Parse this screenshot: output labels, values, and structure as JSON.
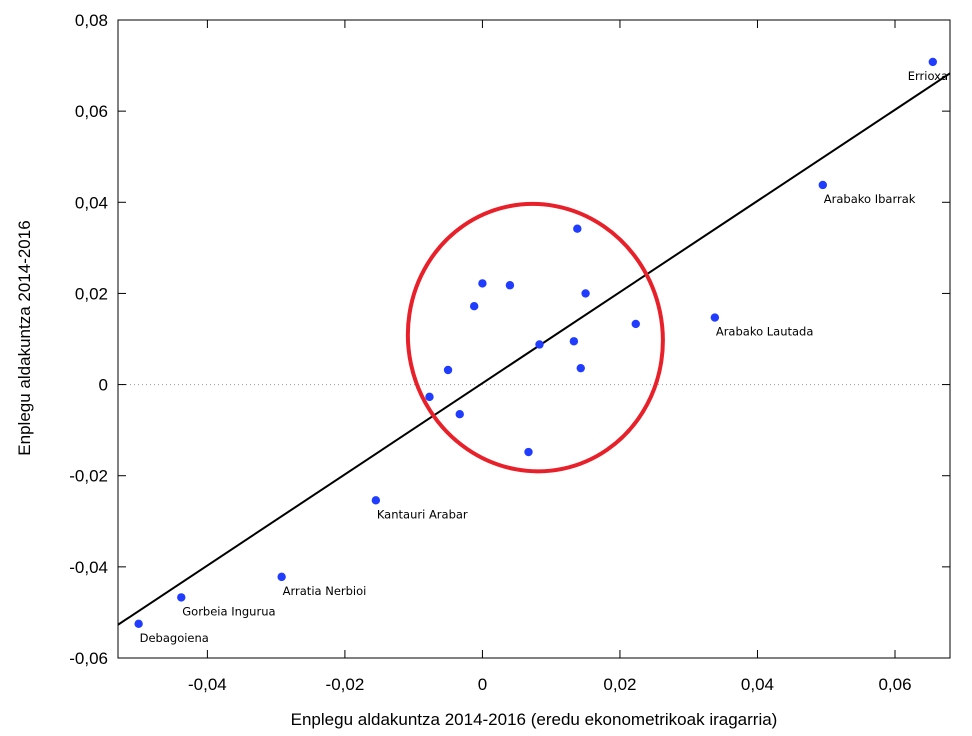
{
  "chart_data": {
    "type": "scatter",
    "xlabel": "Enplegu aldakuntza 2014-2016 (eredu ekonometrikoak iragarria)",
    "ylabel": "Enplegu aldakuntza 2014-2016",
    "xlim": [
      -0.053,
      0.068
    ],
    "ylim": [
      -0.06,
      0.08
    ],
    "x_ticks": [
      {
        "value": -0.04,
        "label": "-0,04"
      },
      {
        "value": -0.02,
        "label": "-0,02"
      },
      {
        "value": 0,
        "label": "0"
      },
      {
        "value": 0.02,
        "label": "0,02"
      },
      {
        "value": 0.04,
        "label": "0,04"
      },
      {
        "value": 0.06,
        "label": "0,06"
      }
    ],
    "y_ticks": [
      {
        "value": -0.06,
        "label": "-0,06"
      },
      {
        "value": -0.04,
        "label": "-0,04"
      },
      {
        "value": -0.02,
        "label": "-0,02"
      },
      {
        "value": 0,
        "label": "0"
      },
      {
        "value": 0.02,
        "label": "0,02"
      },
      {
        "value": 0.04,
        "label": "0,04"
      },
      {
        "value": 0.06,
        "label": "0,06"
      },
      {
        "value": 0.08,
        "label": "0,08"
      }
    ],
    "points": [
      {
        "x": 0.0655,
        "y": 0.0708,
        "label": "Errioxa"
      },
      {
        "x": 0.0495,
        "y": 0.0438,
        "label": "Arabako Ibarrak"
      },
      {
        "x": 0.0338,
        "y": 0.0147,
        "label": "Arabako Lautada"
      },
      {
        "x": -0.0155,
        "y": -0.0254,
        "label": "Kantauri Arabar"
      },
      {
        "x": -0.0292,
        "y": -0.0422,
        "label": "Arratia Nerbioi"
      },
      {
        "x": -0.0438,
        "y": -0.0467,
        "label": "Gorbeia Ingurua"
      },
      {
        "x": -0.05,
        "y": -0.0525,
        "label": "Debagoiena"
      },
      {
        "x": 0.0138,
        "y": 0.0342,
        "label": ""
      },
      {
        "x": 0.0,
        "y": 0.0222,
        "label": ""
      },
      {
        "x": 0.004,
        "y": 0.0218,
        "label": ""
      },
      {
        "x": 0.015,
        "y": 0.02,
        "label": ""
      },
      {
        "x": -0.0012,
        "y": 0.0172,
        "label": ""
      },
      {
        "x": 0.0223,
        "y": 0.0133,
        "label": ""
      },
      {
        "x": 0.0083,
        "y": 0.0088,
        "label": ""
      },
      {
        "x": 0.0133,
        "y": 0.0095,
        "label": ""
      },
      {
        "x": -0.005,
        "y": 0.0032,
        "label": ""
      },
      {
        "x": 0.0143,
        "y": 0.0036,
        "label": ""
      },
      {
        "x": -0.0077,
        "y": -0.0027,
        "label": ""
      },
      {
        "x": -0.0033,
        "y": -0.0065,
        "label": ""
      },
      {
        "x": 0.0067,
        "y": -0.0148,
        "label": ""
      }
    ],
    "fit_line": {
      "x0": -0.053,
      "y0": -0.0527,
      "x1": 0.068,
      "y1": 0.0683
    },
    "zero_line": {
      "y": 0,
      "style": "dotted"
    },
    "annotation_circle": {
      "cx": 0.0077,
      "cy": 0.0103,
      "rx": 0.0185,
      "ry": 0.0294,
      "color": "#e8202a"
    },
    "colors": {
      "points": "#1f3cff",
      "line": "#000000",
      "annotation": "#e8202a"
    }
  }
}
